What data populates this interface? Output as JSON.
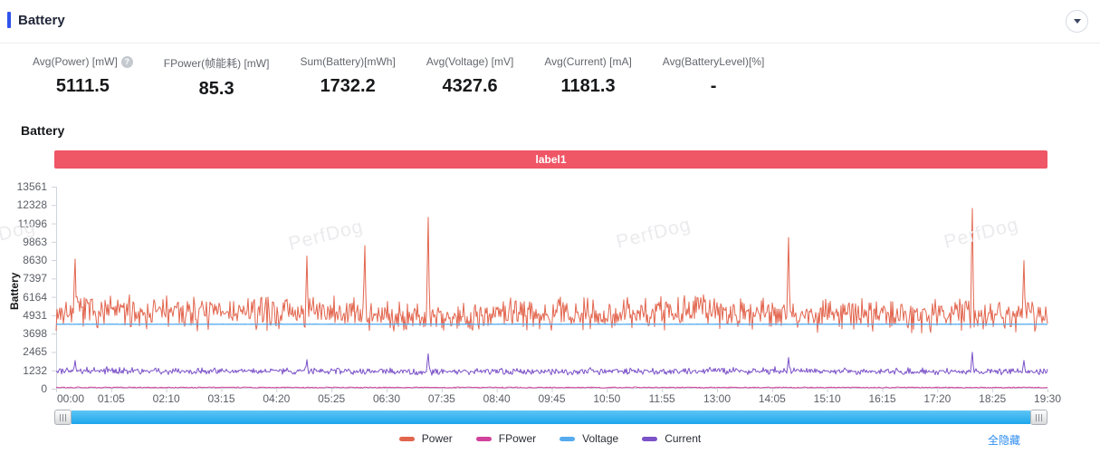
{
  "header": {
    "title": "Battery"
  },
  "colors": {
    "accent": "#2f54eb",
    "banner": "#ef5666",
    "link": "#2d8cf0",
    "slider_track_top": "#5ec6f5",
    "slider_track_bottom": "#1ea6ec",
    "axis": "#cfd3dc",
    "watermark_text": "#ebebee"
  },
  "stats": [
    {
      "label": "Avg(Power) [mW]",
      "value": "5111.5",
      "has_help": true
    },
    {
      "label": "FPower(帧能耗) [mW]",
      "value": "85.3",
      "has_help": false
    },
    {
      "label": "Sum(Battery)[mWh]",
      "value": "1732.2",
      "has_help": false
    },
    {
      "label": "Avg(Voltage) [mV]",
      "value": "4327.6",
      "has_help": false
    },
    {
      "label": "Avg(Current) [mA]",
      "value": "1181.3",
      "has_help": false
    },
    {
      "label": "Avg(BatteryLevel)[%]",
      "value": "-",
      "has_help": false
    }
  ],
  "chart": {
    "section_title": "Battery",
    "banner_label": "label1",
    "watermark": "PerfDog",
    "hide_all_label": "全隐藏"
  },
  "chart_data": {
    "type": "line",
    "title": "Battery",
    "xlabel": "",
    "ylabel": "Battery",
    "ylim": [
      0,
      13561
    ],
    "y_ticks": [
      13561,
      12328,
      11096,
      9863,
      8630,
      7397,
      6164,
      4931,
      3698,
      2465,
      1232,
      0
    ],
    "x_ticks": [
      "00:00",
      "01:05",
      "02:10",
      "03:15",
      "04:20",
      "05:25",
      "06:30",
      "07:35",
      "08:40",
      "09:45",
      "10:50",
      "11:55",
      "13:00",
      "14:05",
      "15:10",
      "16:15",
      "17:20",
      "18:25",
      "19:30"
    ],
    "grid": false,
    "legend_position": "bottom",
    "series": [
      {
        "name": "Power",
        "color": "#e2654e",
        "mean": 5050,
        "noise": 1250,
        "style": "burst",
        "spikes": [
          [
            0.019,
            8700
          ],
          [
            0.253,
            8900
          ],
          [
            0.311,
            9600
          ],
          [
            0.375,
            11500
          ],
          [
            0.739,
            10150
          ],
          [
            0.924,
            12100
          ],
          [
            0.976,
            8600
          ]
        ]
      },
      {
        "name": "FPower",
        "color": "#d1439b",
        "mean": 85,
        "noise": 70,
        "style": "flat",
        "spikes": []
      },
      {
        "name": "Voltage",
        "color": "#55abee",
        "mean": 4327.6,
        "noise": 18,
        "style": "flat",
        "spikes": []
      },
      {
        "name": "Current",
        "color": "#7b52c8",
        "mean": 1170,
        "noise": 260,
        "style": "burst",
        "spikes": [
          [
            0.019,
            1900
          ],
          [
            0.253,
            1950
          ],
          [
            0.375,
            2350
          ],
          [
            0.739,
            2100
          ],
          [
            0.924,
            2450
          ],
          [
            0.976,
            1900
          ]
        ]
      }
    ]
  }
}
